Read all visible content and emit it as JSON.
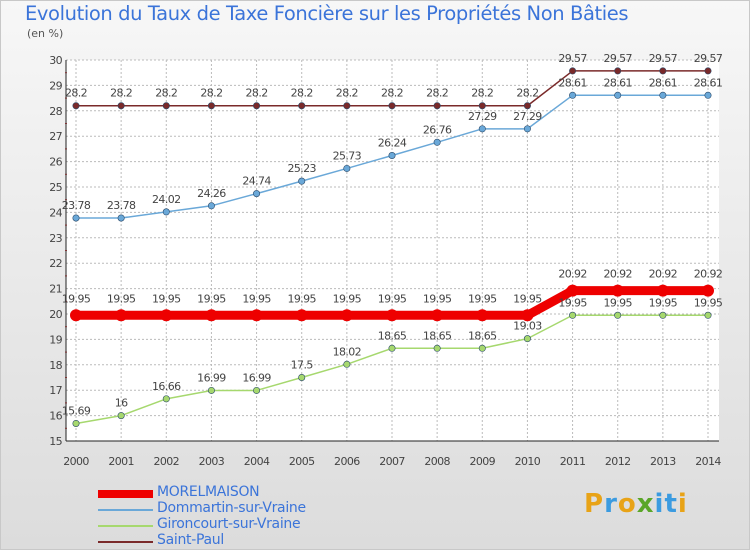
{
  "title": "Evolution du Taux de Taxe Foncière sur les Propriétés Non Bâties",
  "unit_label": "(en %)",
  "brand": {
    "text": "Proxiti",
    "letters": [
      "P",
      "r",
      "o",
      "x",
      "i",
      "t",
      "i"
    ],
    "colors": [
      "#e8a317",
      "#3b9be0",
      "#e8a317",
      "#5aa629",
      "#3b9be0",
      "#3b9be0",
      "#e8a317"
    ]
  },
  "colors": {
    "title": "#3b74d9",
    "grid": "#bbbbbb",
    "axis_text": "#444444"
  },
  "chart_data": {
    "type": "line",
    "title": "Evolution du Taux de Taxe Foncière sur les Propriétés Non Bâties",
    "ylabel": "(en %)",
    "xlabel": "",
    "x": [
      2000,
      2001,
      2002,
      2003,
      2004,
      2005,
      2006,
      2007,
      2008,
      2009,
      2010,
      2011,
      2012,
      2013,
      2014
    ],
    "ylim": [
      15,
      30
    ],
    "yticks": [
      15,
      16,
      17,
      18,
      19,
      20,
      21,
      22,
      23,
      24,
      25,
      26,
      27,
      28,
      29,
      30
    ],
    "grid": true,
    "legend_position": "bottom-left",
    "series": [
      {
        "name": "MORELMAISON",
        "color": "#ee0000",
        "values": [
          19.95,
          19.95,
          19.95,
          19.95,
          19.95,
          19.95,
          19.95,
          19.95,
          19.95,
          19.95,
          19.95,
          20.92,
          20.92,
          20.92,
          20.92
        ],
        "labels": [
          "19.95",
          "19.95",
          "19.95",
          "19.95",
          "19.95",
          "19.95",
          "19.95",
          "19.95",
          "19.95",
          "19.95",
          "19.95",
          "20.92",
          "20.92",
          "20.92",
          "20.92"
        ]
      },
      {
        "name": "Dommartin-sur-Vraine",
        "color": "#6aa8d8",
        "values": [
          23.78,
          23.78,
          24.02,
          24.26,
          24.74,
          25.23,
          25.73,
          26.24,
          26.76,
          27.29,
          27.29,
          28.61,
          28.61,
          28.61,
          28.61
        ],
        "labels": [
          "23.78",
          "23.78",
          "24.02",
          "24.26",
          "24.74",
          "25.23",
          "25.73",
          "26.24",
          "26.76",
          "27.29",
          "27.29",
          "28.61",
          "28.61",
          "28.61",
          "28.61"
        ]
      },
      {
        "name": "Gironcourt-sur-Vraine",
        "color": "#a6d86e",
        "values": [
          15.69,
          16,
          16.66,
          16.99,
          16.99,
          17.5,
          18.02,
          18.65,
          18.65,
          18.65,
          19.03,
          19.95,
          19.95,
          19.95,
          19.95
        ],
        "labels": [
          "15.69",
          "16",
          "16.66",
          "16.99",
          "16.99",
          "17.5",
          "18.02",
          "18.65",
          "18.65",
          "18.65",
          "19.03",
          "19.95",
          "19.95",
          "19.95",
          "19.95"
        ]
      },
      {
        "name": "Saint-Paul",
        "color": "#7a2a2a",
        "values": [
          28.2,
          28.2,
          28.2,
          28.2,
          28.2,
          28.2,
          28.2,
          28.2,
          28.2,
          28.2,
          28.2,
          29.57,
          29.57,
          29.57,
          29.57
        ],
        "labels": [
          "28.2",
          "28.2",
          "28.2",
          "28.2",
          "28.2",
          "28.2",
          "28.2",
          "28.2",
          "28.2",
          "28.2",
          "28.2",
          "29.57",
          "29.57",
          "29.57",
          "29.57"
        ]
      }
    ]
  }
}
